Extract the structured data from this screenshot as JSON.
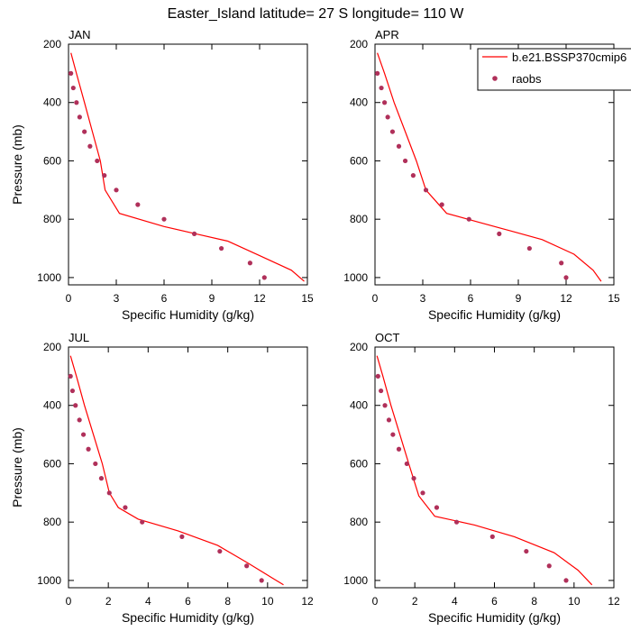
{
  "figure": {
    "title": "Easter_Island  latitude= 27 S longitude= 110 W"
  },
  "legend": {
    "model_label": "b.e21.BSSP370cmip6",
    "obs_label": "raobs",
    "placement": "top-right",
    "colors": {
      "model": "#ff0000",
      "obs": "#b0305a"
    }
  },
  "chart_data": [
    {
      "type": "line+scatter",
      "title": "JAN",
      "xlabel": "Specific Humidity (g/kg)",
      "ylabel": "Pressure (mb)",
      "xlim": [
        0,
        15
      ],
      "xticks": [
        0,
        3,
        6,
        9,
        12,
        15
      ],
      "ylim": [
        200,
        1025
      ],
      "yticks": [
        200,
        400,
        600,
        800,
        1000
      ],
      "y_inverted": true,
      "model": {
        "q": [
          0.15,
          0.5,
          1.0,
          1.5,
          2.0,
          2.3,
          3.2,
          6.0,
          8.0,
          10.0,
          12.0,
          14.0,
          14.8
        ],
        "p": [
          230,
          300,
          400,
          500,
          600,
          700,
          780,
          825,
          850,
          875,
          925,
          975,
          1013
        ]
      },
      "raobs": {
        "q": [
          0.15,
          0.3,
          0.5,
          0.7,
          1.0,
          1.35,
          1.8,
          2.25,
          3.0,
          4.35,
          6.0,
          7.9,
          9.6,
          11.4,
          12.3
        ],
        "p": [
          300,
          350,
          400,
          450,
          500,
          550,
          600,
          650,
          700,
          750,
          800,
          850,
          900,
          950,
          1000
        ]
      }
    },
    {
      "type": "line+scatter",
      "title": "APR",
      "xlabel": "Specific Humidity (g/kg)",
      "ylabel": "",
      "xlim": [
        0,
        15
      ],
      "xticks": [
        0,
        3,
        6,
        9,
        12,
        15
      ],
      "ylim": [
        200,
        1025
      ],
      "yticks": [
        200,
        400,
        600,
        800,
        1000
      ],
      "y_inverted": true,
      "model": {
        "q": [
          0.15,
          0.6,
          1.2,
          1.9,
          2.6,
          3.2,
          4.5,
          6.5,
          8.5,
          10.5,
          12.5,
          13.7,
          14.2
        ],
        "p": [
          230,
          300,
          400,
          500,
          600,
          700,
          780,
          810,
          840,
          870,
          920,
          975,
          1013
        ]
      },
      "raobs": {
        "q": [
          0.15,
          0.4,
          0.6,
          0.8,
          1.1,
          1.5,
          1.9,
          2.4,
          3.2,
          4.2,
          5.9,
          7.8,
          9.7,
          11.7,
          12.0
        ],
        "p": [
          300,
          350,
          400,
          450,
          500,
          550,
          600,
          650,
          700,
          750,
          800,
          850,
          900,
          950,
          1000
        ]
      }
    },
    {
      "type": "line+scatter",
      "title": "JUL",
      "xlabel": "Specific Humidity (g/kg)",
      "ylabel": "Pressure (mb)",
      "xlim": [
        0,
        12
      ],
      "xticks": [
        0,
        2,
        4,
        6,
        8,
        10,
        12
      ],
      "ylim": [
        200,
        1025
      ],
      "yticks": [
        200,
        400,
        600,
        800,
        1000
      ],
      "y_inverted": true,
      "model": {
        "q": [
          0.1,
          0.4,
          0.8,
          1.25,
          1.7,
          2.05,
          2.5,
          3.5,
          5.5,
          7.5,
          9.0,
          10.2,
          10.8
        ],
        "p": [
          230,
          300,
          400,
          500,
          600,
          700,
          750,
          790,
          830,
          880,
          940,
          990,
          1015
        ]
      },
      "raobs": {
        "q": [
          0.1,
          0.2,
          0.35,
          0.55,
          0.75,
          1.0,
          1.35,
          1.65,
          2.05,
          2.85,
          3.7,
          5.7,
          7.6,
          8.95,
          9.7
        ],
        "p": [
          300,
          350,
          400,
          450,
          500,
          550,
          600,
          650,
          700,
          750,
          800,
          850,
          900,
          950,
          1000
        ]
      }
    },
    {
      "type": "line+scatter",
      "title": "OCT",
      "xlabel": "Specific Humidity (g/kg)",
      "ylabel": "",
      "xlim": [
        0,
        12
      ],
      "xticks": [
        0,
        2,
        4,
        6,
        8,
        10,
        12
      ],
      "ylim": [
        200,
        1025
      ],
      "yticks": [
        200,
        400,
        600,
        800,
        1000
      ],
      "y_inverted": true,
      "model": {
        "q": [
          0.1,
          0.4,
          0.8,
          1.25,
          1.7,
          2.2,
          3.0,
          5.0,
          7.0,
          9.0,
          10.2,
          10.9
        ],
        "p": [
          230,
          300,
          400,
          500,
          600,
          710,
          780,
          810,
          850,
          905,
          965,
          1015
        ]
      },
      "raobs": {
        "q": [
          0.15,
          0.3,
          0.5,
          0.7,
          0.9,
          1.2,
          1.6,
          1.95,
          2.4,
          3.1,
          4.1,
          5.9,
          7.6,
          8.75,
          9.6
        ],
        "p": [
          300,
          350,
          400,
          450,
          500,
          550,
          600,
          650,
          700,
          750,
          800,
          850,
          900,
          950,
          1000
        ]
      }
    }
  ]
}
